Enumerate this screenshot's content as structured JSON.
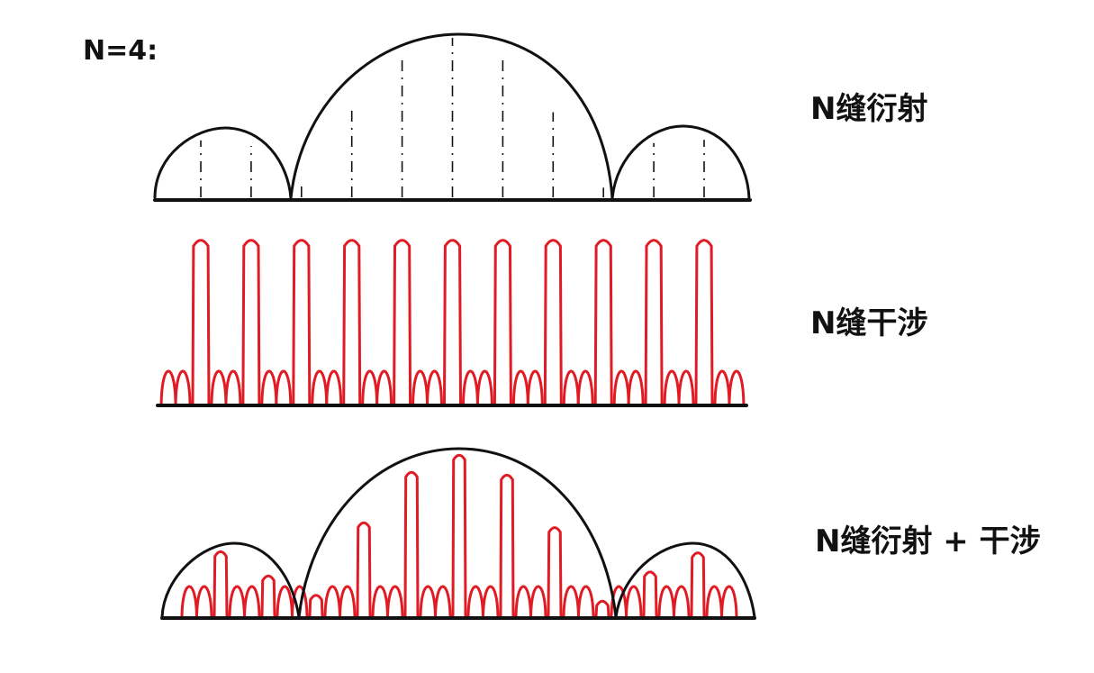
{
  "corner_label": "N=4:",
  "labels": {
    "diffraction": "N缝衍射",
    "interference": "N缝干涉",
    "combined": "N缝衍射 + 干涉"
  },
  "colors": {
    "ink": "#111111",
    "fringe": "#e01b24"
  },
  "diagram": {
    "slits": 4,
    "principal_maxima": 11,
    "secondary_maxima_between_principals": 2
  }
}
